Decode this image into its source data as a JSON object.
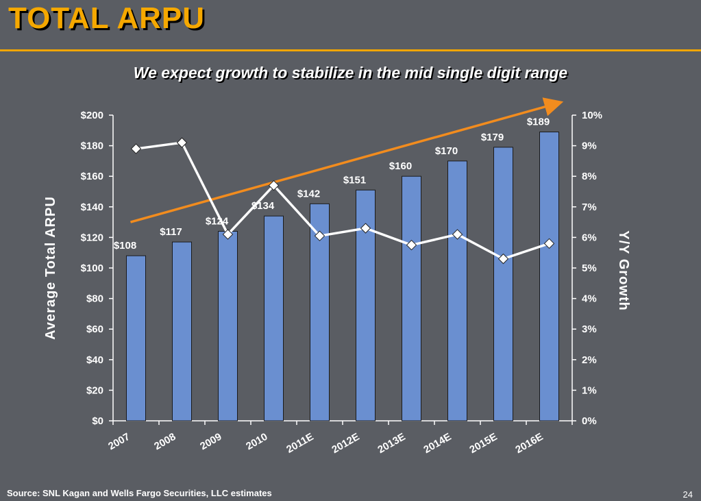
{
  "slide": {
    "title": "TOTAL ARPU",
    "subtitle": "We expect growth to stabilize in the mid single digit range",
    "source": "Source: SNL Kagan and Wells Fargo Securities, LLC estimates",
    "page_number": "24"
  },
  "chart_data": {
    "type": "bar",
    "categories": [
      "2007",
      "2008",
      "2009",
      "2010",
      "2011E",
      "2012E",
      "2013E",
      "2014E",
      "2015E",
      "2016E"
    ],
    "series": [
      {
        "name": "Average Total ARPU",
        "type": "bar",
        "axis": "left",
        "values": [
          108,
          117,
          124,
          134,
          142,
          151,
          160,
          170,
          179,
          189
        ],
        "labels": [
          "$108",
          "$117",
          "$124",
          "$134",
          "$142",
          "$151",
          "$160",
          "$170",
          "$179",
          "$189"
        ],
        "color": "#6a8fd0"
      },
      {
        "name": "Y/Y Growth",
        "type": "line",
        "axis": "right",
        "values": [
          8.9,
          9.1,
          6.1,
          7.7,
          6.05,
          6.3,
          5.75,
          6.1,
          5.3,
          5.8
        ],
        "color": "#ffffff"
      }
    ],
    "trend_arrow": {
      "color": "#f28c1e",
      "from": {
        "x": "2007",
        "y": 6.5
      },
      "to": {
        "x": "2016E",
        "y": 10.4
      }
    },
    "ylabel": "Average Total ARPU",
    "y2label": "Y/Y Growth",
    "ylim": [
      0,
      200
    ],
    "y2lim": [
      0,
      10
    ],
    "yticks": [
      "$0",
      "$20",
      "$40",
      "$60",
      "$80",
      "$100",
      "$120",
      "$140",
      "$160",
      "$180",
      "$200"
    ],
    "y2ticks": [
      "0%",
      "1%",
      "2%",
      "3%",
      "4%",
      "5%",
      "6%",
      "7%",
      "8%",
      "9%",
      "10%"
    ],
    "grid": false,
    "legend": "none"
  }
}
